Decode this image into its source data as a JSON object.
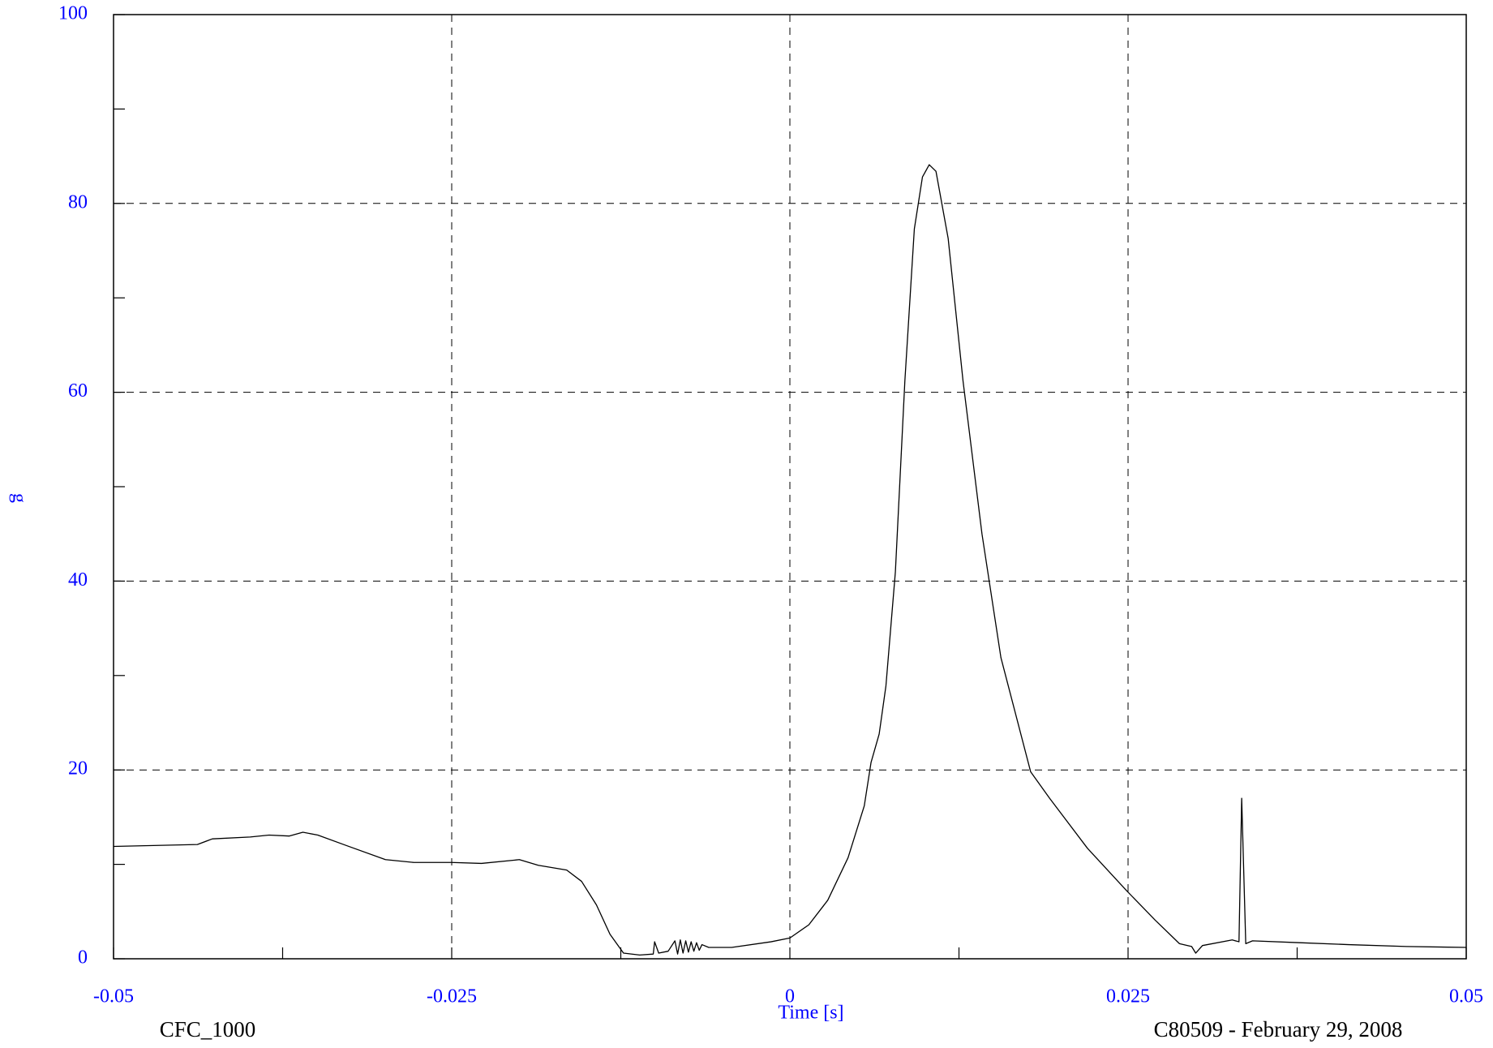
{
  "chart_data": {
    "type": "line",
    "xlabel": "Time [s]",
    "ylabel": "g",
    "footer_left": "CFC_1000",
    "footer_right": "C80509 - February 29, 2008",
    "xlim": [
      -0.05,
      0.05
    ],
    "xticks": [
      -0.05,
      -0.025,
      0,
      0.025,
      0.05
    ],
    "x_minor_ticks": [
      -0.0375,
      -0.0125,
      0.0125,
      0.0375
    ],
    "ylim": [
      0,
      100
    ],
    "yticks": [
      0,
      20,
      40,
      60,
      80,
      100
    ],
    "y_minor_ticks": [
      10,
      30,
      50,
      70,
      90
    ],
    "grid": true,
    "series": [
      {
        "color": "#000000",
        "x": [
          -0.05,
          -0.0438,
          -0.0427,
          -0.0399,
          -0.0385,
          -0.037,
          -0.036,
          -0.0349,
          -0.0328,
          -0.0299,
          -0.0278,
          -0.025,
          -0.0228,
          -0.02,
          -0.0186,
          -0.0165,
          -0.0154,
          -0.0143,
          -0.0133,
          -0.0123,
          -0.0111,
          -0.0101,
          -0.01,
          -0.0097,
          -0.009,
          -0.0085,
          -0.0083,
          -0.0081,
          -0.0079,
          -0.0077,
          -0.0075,
          -0.0073,
          -0.0071,
          -0.0069,
          -0.0067,
          -0.0065,
          -0.006,
          -0.0043,
          -0.0014,
          0,
          0.0014,
          0.0028,
          0.0043,
          0.0055,
          0.006,
          0.0066,
          0.0071,
          0.0078,
          0.0085,
          0.0092,
          0.0098,
          0.0103,
          0.0108,
          0.0117,
          0.0128,
          0.0142,
          0.0156,
          0.0178,
          0.0192,
          0.022,
          0.0249,
          0.027,
          0.0288,
          0.0297,
          0.03,
          0.0305,
          0.0327,
          0.0332,
          0.0334,
          0.0337,
          0.0342,
          0.0377,
          0.0413,
          0.0456,
          0.05
        ],
        "values": [
          11.9,
          12.1,
          12.7,
          12.9,
          13.1,
          13.0,
          13.4,
          13.1,
          12.0,
          10.5,
          10.2,
          10.2,
          10.1,
          10.5,
          9.9,
          9.4,
          8.2,
          5.7,
          2.6,
          0.6,
          0.4,
          0.5,
          1.8,
          0.6,
          0.8,
          1.9,
          0.5,
          2.0,
          0.6,
          1.9,
          0.7,
          1.8,
          0.8,
          1.7,
          0.9,
          1.5,
          1.2,
          1.2,
          1.8,
          2.2,
          3.6,
          6.2,
          10.7,
          16.2,
          20.8,
          23.8,
          28.9,
          41,
          61.2,
          77.3,
          82.8,
          84.1,
          83.4,
          76.3,
          61.2,
          45,
          31.9,
          19.8,
          17,
          11.7,
          7.2,
          4.1,
          1.6,
          1.3,
          0.6,
          1.4,
          2.0,
          1.8,
          17,
          1.6,
          1.9,
          1.7,
          1.5,
          1.3,
          1.2
        ]
      }
    ]
  }
}
